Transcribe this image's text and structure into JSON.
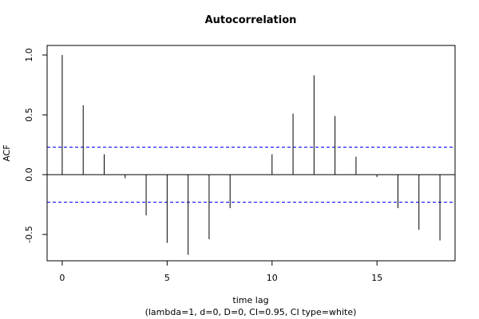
{
  "chart_data": {
    "type": "bar",
    "title": "Autocorrelation",
    "xlabel": "time lag",
    "subtitle": "(lambda=1, d=0, D=0, CI=0.95, CI type=white)",
    "ylabel": "ACF",
    "x": [
      0,
      1,
      2,
      3,
      4,
      5,
      6,
      7,
      8,
      9,
      10,
      11,
      12,
      13,
      14,
      15,
      16,
      17,
      18
    ],
    "values": [
      1.0,
      0.58,
      0.17,
      -0.03,
      -0.34,
      -0.57,
      -0.67,
      -0.54,
      -0.28,
      0.0,
      0.17,
      0.51,
      0.83,
      0.49,
      0.15,
      -0.02,
      -0.28,
      -0.46,
      -0.55
    ],
    "ci_upper": 0.23,
    "ci_lower": -0.23,
    "xlim": [
      -0.72,
      18.72
    ],
    "ylim": [
      -0.72,
      1.08
    ],
    "xticks": [
      0,
      5,
      10,
      15
    ],
    "yticks": [
      -0.5,
      0.0,
      0.5,
      1.0
    ],
    "xtick_labels": [
      "0",
      "5",
      "10",
      "15"
    ],
    "ytick_labels": [
      "-0.5",
      "0.0",
      "0.5",
      "1.0"
    ],
    "grid": false,
    "colors": {
      "bars": "#000000",
      "ci": "#0000ff",
      "zero": "#000000"
    }
  }
}
